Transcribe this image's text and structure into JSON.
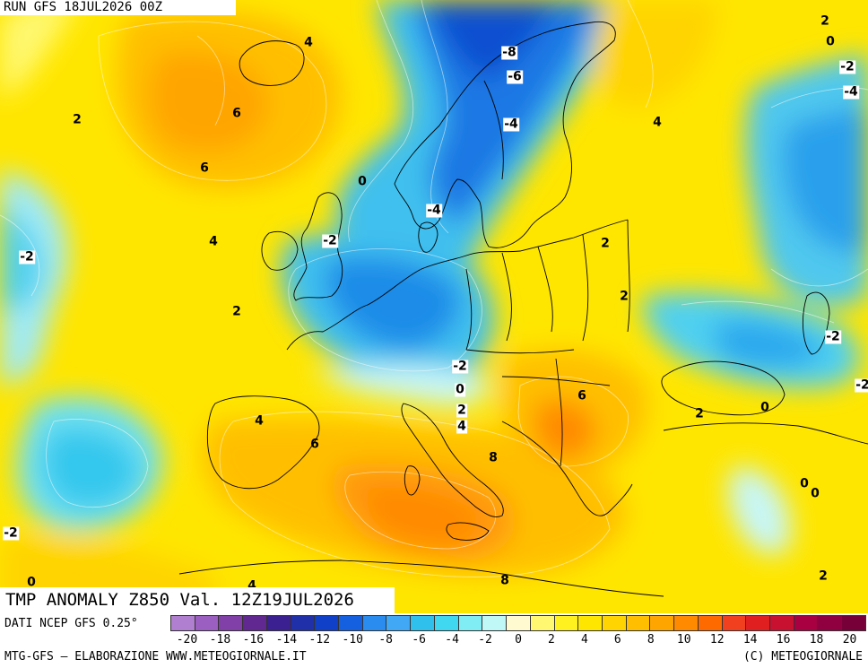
{
  "header": {
    "run_label": "RUN GFS 18JUL2026 00Z"
  },
  "title": {
    "text": "TMP ANOMALY Z850 Val. 12Z19JUL2026"
  },
  "footer": {
    "source": "DATI NCEP GFS 0.25°",
    "credits": "MTG-GFS – ELABORAZIONE WWW.METEOGIORNALE.IT",
    "copyright": "(C) METEOGIORNALE"
  },
  "colors": {
    "scale": [
      "#b07fd0",
      "#9a5fc0",
      "#8040a8",
      "#602890",
      "#3a2090",
      "#2030a8",
      "#1040c8",
      "#1460e0",
      "#2a8cee",
      "#40a8f4",
      "#30c0ec",
      "#40d8f0",
      "#80ecf4",
      "#c0f8f8",
      "#fffad0",
      "#fff870",
      "#fff020",
      "#ffe600",
      "#ffd400",
      "#ffbf00",
      "#ffa500",
      "#ff8a00",
      "#ff6a00",
      "#f04020",
      "#e02020",
      "#c81030",
      "#a80040",
      "#900040",
      "#780038"
    ],
    "sea_base": "#ffd21a",
    "land_lines": "#000000"
  },
  "scale_labels": [
    "-20",
    "-18",
    "-16",
    "-14",
    "-12",
    "-10",
    "-8",
    "-6",
    "-4",
    "-2",
    "0",
    "2",
    "4",
    "6",
    "8",
    "10",
    "12",
    "14",
    "16",
    "18",
    "20"
  ],
  "contour_labels": [
    "4",
    "6",
    "2",
    "6",
    "4",
    "-2",
    "2",
    "0",
    "-2",
    "-4",
    "-8",
    "-6",
    "-4",
    "4",
    "2",
    "2",
    "-2",
    "0",
    "2",
    "4",
    "6",
    "-2",
    "0",
    "2",
    "8",
    "6",
    "4",
    "0",
    "0",
    "2",
    "8",
    "-2",
    "0",
    "4",
    "2",
    "0",
    "-2",
    "-4",
    "-2",
    "2"
  ]
}
